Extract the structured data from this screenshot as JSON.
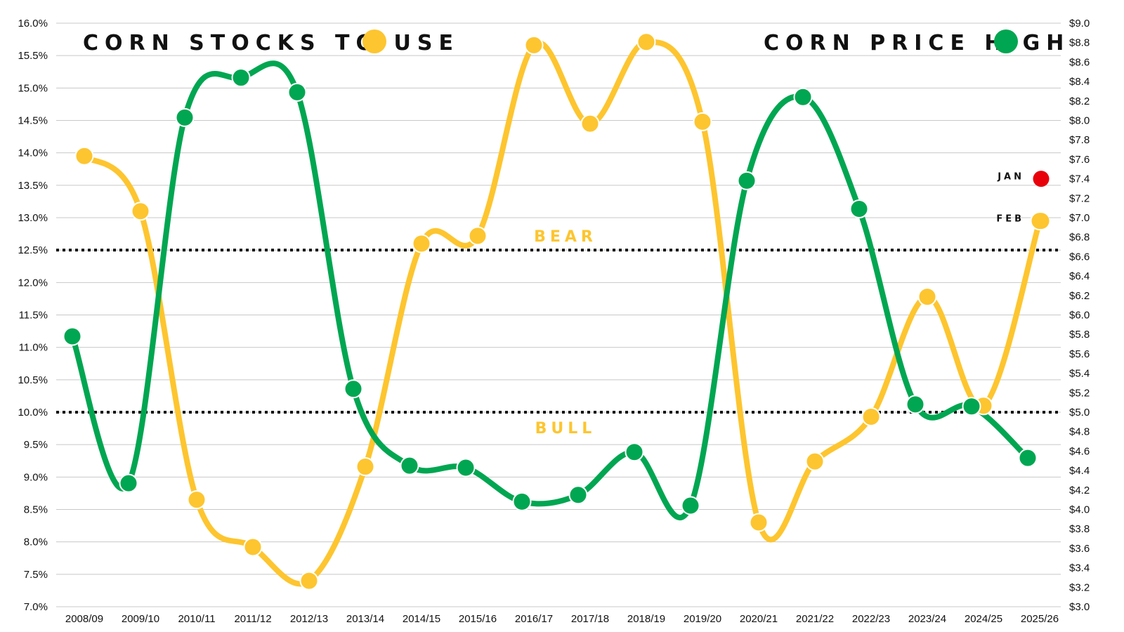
{
  "chart_data": {
    "type": "line",
    "categories": [
      "2008/09",
      "2009/10",
      "2010/11",
      "2011/12",
      "2012/13",
      "2013/14",
      "2014/15",
      "2015/16",
      "2016/17",
      "2017/18",
      "2018/19",
      "2019/20",
      "2020/21",
      "2021/22",
      "2022/23",
      "2023/24",
      "2024/25",
      "2025/26"
    ],
    "series": [
      {
        "name": "CORN STOCKS TO USE",
        "axis": "left",
        "color": "#fdc52f",
        "values": [
          13.95,
          13.1,
          8.65,
          7.92,
          7.4,
          9.16,
          12.6,
          12.72,
          15.66,
          14.45,
          15.71,
          14.48,
          8.3,
          9.24,
          9.93,
          11.78,
          10.1,
          12.95
        ]
      },
      {
        "name": "CORN PRICE HIGH",
        "axis": "right",
        "color": "#00a651",
        "values": [
          5.78,
          4.27,
          8.03,
          8.44,
          8.29,
          5.24,
          4.45,
          4.43,
          4.08,
          4.15,
          4.59,
          4.04,
          7.38,
          8.24,
          7.09,
          5.08,
          5.06,
          4.53
        ]
      }
    ],
    "y_left": {
      "ylim": [
        7.0,
        16.0
      ],
      "ticks": [
        "7.0%",
        "7.5%",
        "8.0%",
        "8.5%",
        "9.0%",
        "9.5%",
        "10.0%",
        "10.5%",
        "11.0%",
        "11.5%",
        "12.0%",
        "12.5%",
        "13.0%",
        "13.5%",
        "14.0%",
        "14.5%",
        "15.0%",
        "15.5%",
        "16.0%"
      ]
    },
    "y_right": {
      "ylim": [
        3.0,
        9.0
      ],
      "ticks": [
        "$3.0",
        "$3.2",
        "$3.4",
        "$3.6",
        "$3.8",
        "$4.0",
        "$4.2",
        "$4.4",
        "$4.6",
        "$4.8",
        "$5.0",
        "$5.2",
        "$5.4",
        "$5.6",
        "$5.8",
        "$6.0",
        "$6.2",
        "$6.4",
        "$6.6",
        "$6.8",
        "$7.0",
        "$7.2",
        "$7.4",
        "$7.6",
        "$7.8",
        "$8.0",
        "$8.2",
        "$8.4",
        "$8.6",
        "$8.8",
        "$9.0"
      ]
    },
    "grid": true,
    "thresholds": [
      {
        "label": "BEAR",
        "value": 12.5,
        "color": "#fdc52f"
      },
      {
        "label": "BULL",
        "value": 10.0,
        "color": "#fdc52f"
      }
    ],
    "annotations": [
      {
        "label": "JAN",
        "category": "2025/26",
        "value": 13.6,
        "color": "#e8000b"
      },
      {
        "label": "FEB",
        "category": "2025/26",
        "value": 12.95,
        "color": "#fdc52f"
      }
    ],
    "legend": {
      "placement": "top",
      "left_title": "CORN STOCKS TO USE",
      "right_title": "CORN PRICE HIGH"
    }
  }
}
